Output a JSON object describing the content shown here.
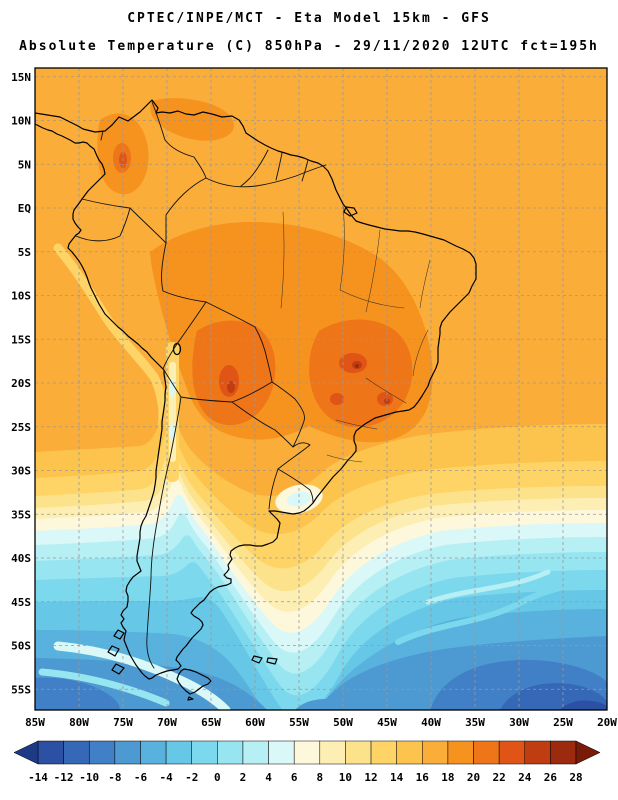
{
  "header": {
    "line1": "CPTEC/INPE/MCT -  Eta Model 15km - GFS",
    "line2": "Absolute Temperature (C) 850hPa - 29/11/2020 12UTC fct=195h"
  },
  "map": {
    "lat_labels": [
      "15N",
      "10N",
      "5N",
      "EQ",
      "5S",
      "10S",
      "15S",
      "20S",
      "25S",
      "30S",
      "35S",
      "40S",
      "45S",
      "50S",
      "55S"
    ],
    "lon_labels": [
      "85W",
      "80W",
      "75W",
      "70W",
      "65W",
      "60W",
      "55W",
      "50W",
      "45W",
      "40W",
      "35W",
      "30W",
      "25W",
      "20W"
    ]
  },
  "colorbar": {
    "ticks": [
      "-14",
      "-12",
      "-10",
      "-8",
      "-6",
      "-4",
      "-2",
      "0",
      "2",
      "4",
      "6",
      "8",
      "10",
      "12",
      "14",
      "16",
      "18",
      "20",
      "22",
      "24",
      "26",
      "28"
    ],
    "cells": [
      "#2b50a4",
      "#3668b8",
      "#4180c6",
      "#4d99d2",
      "#59b1dd",
      "#66c8e6",
      "#7cd8ec",
      "#97e5f0",
      "#b6eff4",
      "#d9f8f7",
      "#fdf8dc",
      "#fdeeb4",
      "#fde28c",
      "#fdd465",
      "#fcc44c",
      "#fbad3a",
      "#f6921e",
      "#ee7518",
      "#e05515",
      "#c03d12",
      "#9c2a0e"
    ],
    "arrow_left": "#1c3a85",
    "arrow_right": "#7a1a08"
  }
}
